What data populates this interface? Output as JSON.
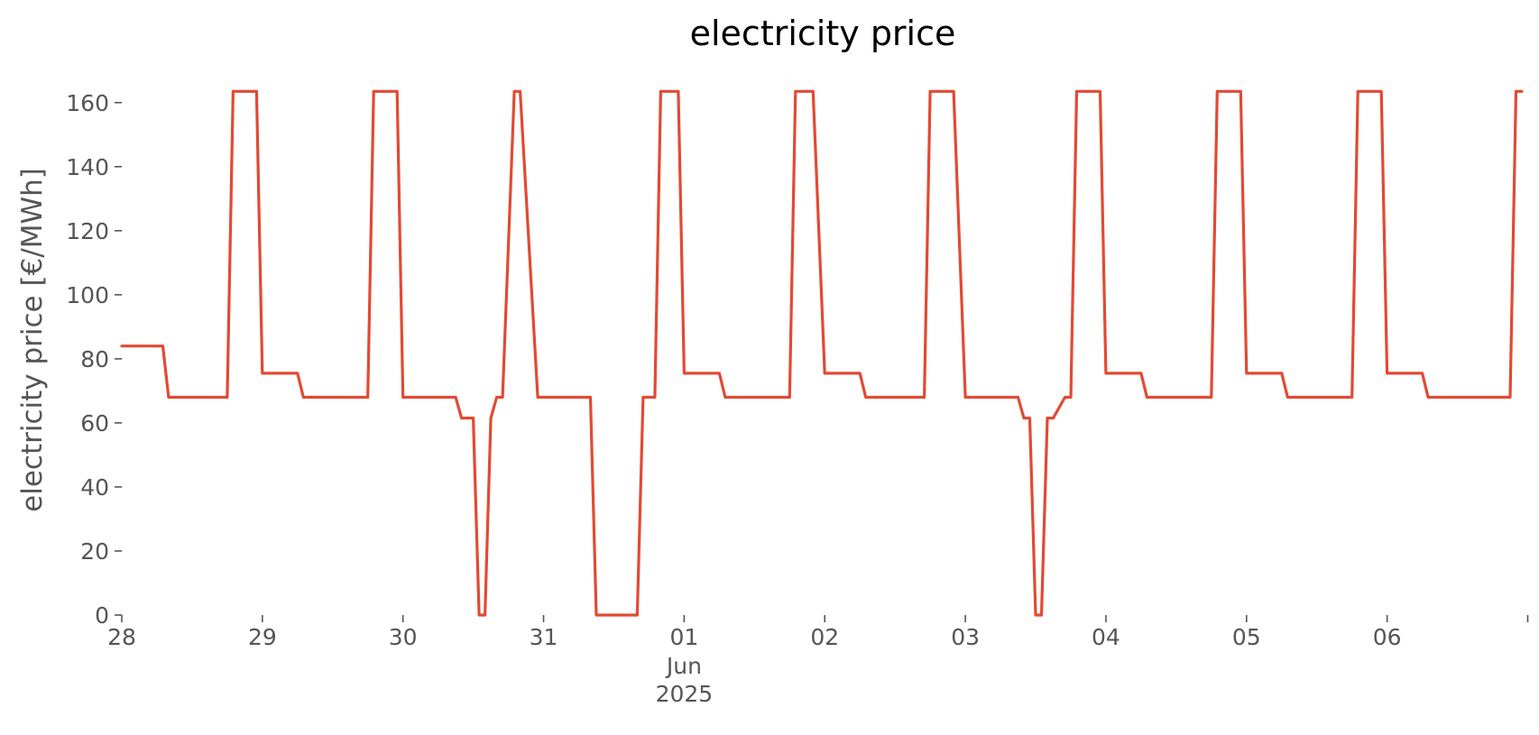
{
  "chart_data": {
    "type": "line",
    "title": "electricity price",
    "xlabel": "",
    "ylabel": "electricity price [€/MWh]",
    "ylim": [
      0,
      165
    ],
    "xlim": [
      "2025-05-28T00:00",
      "2025-06-06T23:00"
    ],
    "yticks": [
      0,
      20,
      40,
      60,
      80,
      100,
      120,
      140,
      160
    ],
    "xticks": [
      {
        "x": "2025-05-28",
        "label": "28"
      },
      {
        "x": "2025-05-29",
        "label": "29"
      },
      {
        "x": "2025-05-30",
        "label": "30"
      },
      {
        "x": "2025-05-31",
        "label": "31"
      },
      {
        "x": "2025-06-01",
        "label": "01",
        "sublabels": [
          "Jun",
          "2025"
        ]
      },
      {
        "x": "2025-06-02",
        "label": "02"
      },
      {
        "x": "2025-06-03",
        "label": "03"
      },
      {
        "x": "2025-06-04",
        "label": "04"
      },
      {
        "x": "2025-06-05",
        "label": "05"
      },
      {
        "x": "2025-06-06",
        "label": "06"
      },
      {
        "x": "2025-06-07",
        "label": ""
      }
    ],
    "grid": false,
    "color": "#E24A33",
    "series": [
      {
        "x": [
          "2025-05-28T00:00",
          "2025-05-28T07:00",
          "2025-05-28T08:00",
          "2025-05-28T18:00",
          "2025-05-28T19:00",
          "2025-05-28T23:00",
          "2025-05-29T00:00",
          "2025-05-29T06:00",
          "2025-05-29T07:00",
          "2025-05-29T18:00",
          "2025-05-29T19:00",
          "2025-05-29T23:00",
          "2025-05-30T00:00",
          "2025-05-30T09:00",
          "2025-05-30T10:00",
          "2025-05-30T12:00",
          "2025-05-30T13:00",
          "2025-05-30T14:00",
          "2025-05-30T15:00",
          "2025-05-30T16:00",
          "2025-05-30T17:00",
          "2025-05-30T19:00",
          "2025-05-30T20:00",
          "2025-05-30T23:00",
          "2025-05-31T00:00",
          "2025-05-31T08:00",
          "2025-05-31T09:00",
          "2025-05-31T16:00",
          "2025-05-31T17:00",
          "2025-05-31T19:00",
          "2025-05-31T20:00",
          "2025-05-31T23:00",
          "2025-06-01T00:00",
          "2025-06-01T06:00",
          "2025-06-01T07:00",
          "2025-06-01T18:00",
          "2025-06-01T19:00",
          "2025-06-01T22:00",
          "2025-06-02T00:00",
          "2025-06-02T06:00",
          "2025-06-02T07:00",
          "2025-06-02T17:00",
          "2025-06-02T18:00",
          "2025-06-02T22:00",
          "2025-06-03T00:00",
          "2025-06-03T09:00",
          "2025-06-03T10:00",
          "2025-06-03T11:00",
          "2025-06-03T12:00",
          "2025-06-03T13:00",
          "2025-06-03T14:00",
          "2025-06-03T15:00",
          "2025-06-03T17:00",
          "2025-06-03T18:00",
          "2025-06-03T19:00",
          "2025-06-03T23:00",
          "2025-06-04T00:00",
          "2025-06-04T06:00",
          "2025-06-04T07:00",
          "2025-06-04T18:00",
          "2025-06-04T19:00",
          "2025-06-04T23:00",
          "2025-06-05T00:00",
          "2025-06-05T06:00",
          "2025-06-05T07:00",
          "2025-06-05T18:00",
          "2025-06-05T19:00",
          "2025-06-05T23:00",
          "2025-06-06T00:00",
          "2025-06-06T06:00",
          "2025-06-06T07:00",
          "2025-06-06T21:00",
          "2025-06-06T22:00",
          "2025-06-06T23:00"
        ],
        "y": [
          84,
          84,
          68,
          68,
          163.5,
          163.5,
          75.5,
          75.5,
          68,
          68,
          163.5,
          163.5,
          68,
          68,
          61.5,
          61.5,
          0,
          0,
          61.5,
          68,
          68,
          163.5,
          163.5,
          68,
          68,
          68,
          0,
          0,
          68,
          68,
          163.5,
          163.5,
          75.5,
          75.5,
          68,
          68,
          163.5,
          163.5,
          75.5,
          75.5,
          68,
          68,
          163.5,
          163.5,
          68,
          68,
          61.5,
          61.5,
          0,
          0,
          61.5,
          61.5,
          68,
          68,
          163.5,
          163.5,
          75.5,
          75.5,
          68,
          68,
          163.5,
          163.5,
          75.5,
          75.5,
          68,
          68,
          163.5,
          163.5,
          75.5,
          75.5,
          68,
          68,
          163.5,
          163.5
        ]
      }
    ]
  }
}
